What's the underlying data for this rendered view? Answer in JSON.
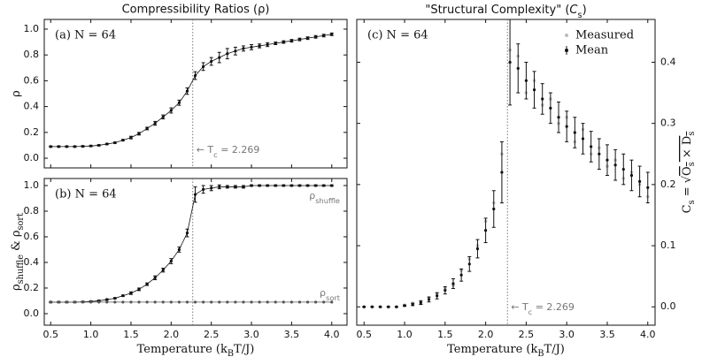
{
  "chart_data": [
    {
      "type": "errorbar",
      "title": "Compressibility Ratios (ρ)",
      "panel_label": "(a)  N = 64",
      "ylabel": [
        {
          "text": "ρ"
        }
      ],
      "xlim": [
        0.42,
        4.19
      ],
      "xticks": [
        0.5,
        {
          "value": 1,
          "label": "1.0"
        },
        1.5,
        {
          "value": 2,
          "label": "2.0"
        },
        2.5,
        {
          "value": 3,
          "label": "3.0"
        },
        3.5,
        {
          "value": 4,
          "label": "4.0"
        }
      ],
      "xticklabels": false,
      "ylim": [
        -0.075,
        1.075
      ],
      "yticks": [
        {
          "value": 0,
          "label": "0.0"
        },
        0.2,
        0.4,
        0.6,
        0.8,
        {
          "value": 1,
          "label": "1.0"
        }
      ],
      "tc": 2.269,
      "annotation": [
        {
          "text": "← T"
        },
        {
          "text": "c",
          "sub": true
        },
        {
          "text": " = 2.269"
        }
      ],
      "x": [
        0.5,
        0.6,
        0.7,
        0.8,
        0.9,
        1.0,
        1.1,
        1.2,
        1.3,
        1.4,
        1.5,
        1.6,
        1.7,
        1.8,
        1.9,
        2.0,
        2.1,
        2.2,
        2.3,
        2.4,
        2.5,
        2.6,
        2.7,
        2.8,
        2.9,
        3.0,
        3.1,
        3.2,
        3.3,
        3.4,
        3.5,
        3.6,
        3.7,
        3.8,
        3.9,
        4.0
      ],
      "series": [
        {
          "color": "#111111",
          "connect": true,
          "values": [
            0.09,
            0.09,
            0.09,
            0.09,
            0.092,
            0.095,
            0.1,
            0.11,
            0.12,
            0.14,
            0.16,
            0.19,
            0.23,
            0.27,
            0.32,
            0.37,
            0.43,
            0.52,
            0.64,
            0.71,
            0.75,
            0.78,
            0.81,
            0.83,
            0.85,
            0.86,
            0.87,
            0.88,
            0.89,
            0.9,
            0.91,
            0.92,
            0.93,
            0.94,
            0.95,
            0.96
          ],
          "errors": [
            0.005,
            0.005,
            0.005,
            0.005,
            0.005,
            0.005,
            0.005,
            0.005,
            0.005,
            0.005,
            0.01,
            0.01,
            0.01,
            0.015,
            0.015,
            0.02,
            0.02,
            0.025,
            0.03,
            0.03,
            0.03,
            0.04,
            0.04,
            0.03,
            0.02,
            0.02,
            0.015,
            0.015,
            0.01,
            0.01,
            0.01,
            0.01,
            0.01,
            0.01,
            0.01,
            0.01
          ]
        }
      ]
    },
    {
      "type": "errorbar",
      "panel_label": "(b)  N = 64",
      "ylabel": [
        {
          "text": "ρ"
        },
        {
          "text": "shuffle",
          "sub": true
        },
        {
          "text": " & ρ"
        },
        {
          "text": "sort",
          "sub": true
        }
      ],
      "xlabel": [
        {
          "text": "Temperature (k"
        },
        {
          "text": "B",
          "sub": true
        },
        {
          "text": "T/J)"
        }
      ],
      "xlim": [
        0.42,
        4.19
      ],
      "xticks": [
        0.5,
        {
          "value": 1,
          "label": "1.0"
        },
        1.5,
        {
          "value": 2,
          "label": "2.0"
        },
        2.5,
        {
          "value": 3,
          "label": "3.0"
        },
        3.5,
        {
          "value": 4,
          "label": "4.0"
        }
      ],
      "ylim": [
        -0.09,
        1.055
      ],
      "yticks": [
        {
          "value": 0,
          "label": "0.0"
        },
        0.2,
        0.4,
        0.6,
        0.8,
        {
          "value": 1,
          "label": "1.0"
        }
      ],
      "tc": 2.269,
      "x": [
        0.5,
        0.6,
        0.7,
        0.8,
        0.9,
        1.0,
        1.1,
        1.2,
        1.3,
        1.4,
        1.5,
        1.6,
        1.7,
        1.8,
        1.9,
        2.0,
        2.1,
        2.2,
        2.3,
        2.4,
        2.5,
        2.6,
        2.7,
        2.8,
        2.9,
        3.0,
        3.1,
        3.2,
        3.3,
        3.4,
        3.5,
        3.6,
        3.7,
        3.8,
        3.9,
        4.0
      ],
      "series": [
        {
          "label": [
            {
              "text": "ρ"
            },
            {
              "text": "shuffle",
              "sub": true
            }
          ],
          "label_side": "below",
          "color": "#111111",
          "connect": true,
          "values": [
            0.09,
            0.09,
            0.09,
            0.09,
            0.092,
            0.095,
            0.1,
            0.11,
            0.12,
            0.14,
            0.16,
            0.19,
            0.23,
            0.28,
            0.34,
            0.41,
            0.5,
            0.63,
            0.93,
            0.97,
            0.98,
            0.99,
            0.99,
            0.99,
            0.99,
            1.0,
            1.0,
            1.0,
            1.0,
            1.0,
            1.0,
            1.0,
            1.0,
            1.0,
            1.0,
            1.0
          ],
          "errors": [
            0.005,
            0.005,
            0.005,
            0.005,
            0.005,
            0.005,
            0.005,
            0.005,
            0.005,
            0.005,
            0.01,
            0.01,
            0.01,
            0.015,
            0.015,
            0.02,
            0.02,
            0.03,
            0.06,
            0.03,
            0.02,
            0.015,
            0.01,
            0.01,
            0.01,
            0.005,
            0.005,
            0.005,
            0.005,
            0.005,
            0.005,
            0.005,
            0.005,
            0.005,
            0.005,
            0.005
          ]
        },
        {
          "label": [
            {
              "text": "ρ"
            },
            {
              "text": "sort",
              "sub": true
            }
          ],
          "label_side": "above",
          "color": "#555555",
          "connect": true,
          "values": [
            0.09,
            0.09,
            0.09,
            0.09,
            0.09,
            0.09,
            0.09,
            0.09,
            0.09,
            0.09,
            0.09,
            0.09,
            0.09,
            0.09,
            0.09,
            0.09,
            0.09,
            0.09,
            0.09,
            0.09,
            0.09,
            0.09,
            0.09,
            0.09,
            0.09,
            0.09,
            0.09,
            0.09,
            0.09,
            0.09,
            0.09,
            0.09,
            0.09,
            0.09,
            0.09,
            0.09
          ]
        }
      ]
    },
    {
      "type": "errorbar",
      "title": [
        {
          "text": "\"Structural Complexity\" ("
        },
        {
          "text": "C",
          "italic": true
        },
        {
          "text": "s",
          "sub": true
        },
        {
          "text": ")"
        }
      ],
      "panel_label": "(c)  N = 64",
      "ylabel": [
        {
          "text": "C"
        },
        {
          "text": "s",
          "sub": true
        },
        {
          "text": " = √"
        },
        {
          "text": "O",
          "over": true
        },
        {
          "text": "s",
          "sub": true,
          "over": true
        },
        {
          "text": " × D",
          "over": true
        },
        {
          "text": "s",
          "sub": true,
          "over": true
        }
      ],
      "yaxis_side": "right",
      "xlabel": [
        {
          "text": "Temperature (k"
        },
        {
          "text": "B",
          "sub": true
        },
        {
          "text": "T/J)"
        }
      ],
      "xlim": [
        0.41,
        4.09
      ],
      "xticks": [
        0.5,
        {
          "value": 1,
          "label": "1.0"
        },
        1.5,
        {
          "value": 2,
          "label": "2.0"
        },
        2.5,
        {
          "value": 3,
          "label": "3.0"
        },
        3.5,
        {
          "value": 4,
          "label": "4.0"
        }
      ],
      "ylim": [
        -0.03,
        0.47
      ],
      "yticks": [
        {
          "value": 0,
          "label": "0.0"
        },
        0.1,
        0.2,
        0.3,
        0.4
      ],
      "tc": 2.269,
      "annotation": [
        {
          "text": "← T"
        },
        {
          "text": "c",
          "sub": true
        },
        {
          "text": " = 2.269"
        }
      ],
      "legend": "upper right",
      "x": [
        0.5,
        0.6,
        0.7,
        0.8,
        0.9,
        1.0,
        1.1,
        1.2,
        1.3,
        1.4,
        1.5,
        1.6,
        1.7,
        1.8,
        1.9,
        2.0,
        2.1,
        2.2,
        2.3,
        2.4,
        2.5,
        2.6,
        2.7,
        2.8,
        2.9,
        3.0,
        3.1,
        3.2,
        3.3,
        3.4,
        3.5,
        3.6,
        3.7,
        3.8,
        3.9,
        4.0
      ],
      "series": [
        {
          "name": "Measured",
          "color": "#bbbbbb",
          "marker": "dot",
          "values": [
            0,
            0,
            0,
            0,
            0,
            0.003,
            0.006,
            0.005,
            0.015,
            0.022,
            0.03,
            0.035,
            0.06,
            0.078,
            0.1,
            0.14,
            0.17,
            0.25,
            0.42,
            0.41,
            0.35,
            0.37,
            0.33,
            0.34,
            0.3,
            0.31,
            0.27,
            0.29,
            0.25,
            0.26,
            0.23,
            0.24,
            0.21,
            0.22,
            0.2,
            0.18
          ]
        },
        {
          "name": "Mean",
          "color": "#111111",
          "values": [
            0,
            0,
            0,
            0,
            0,
            0.002,
            0.004,
            0.007,
            0.012,
            0.018,
            0.027,
            0.038,
            0.052,
            0.07,
            0.095,
            0.125,
            0.16,
            0.22,
            0.4,
            0.39,
            0.37,
            0.355,
            0.34,
            0.325,
            0.31,
            0.295,
            0.285,
            0.275,
            0.262,
            0.25,
            0.24,
            0.232,
            0.225,
            0.215,
            0.205,
            0.195
          ],
          "errors": [
            0,
            0,
            0,
            0,
            0,
            0.001,
            0.002,
            0.003,
            0.004,
            0.005,
            0.006,
            0.008,
            0.01,
            0.012,
            0.015,
            0.02,
            0.03,
            0.05,
            0.07,
            0.04,
            0.03,
            0.03,
            0.025,
            0.025,
            0.025,
            0.025,
            0.025,
            0.025,
            0.025,
            0.025,
            0.025,
            0.025,
            0.025,
            0.025,
            0.025,
            0.025
          ]
        }
      ]
    }
  ]
}
